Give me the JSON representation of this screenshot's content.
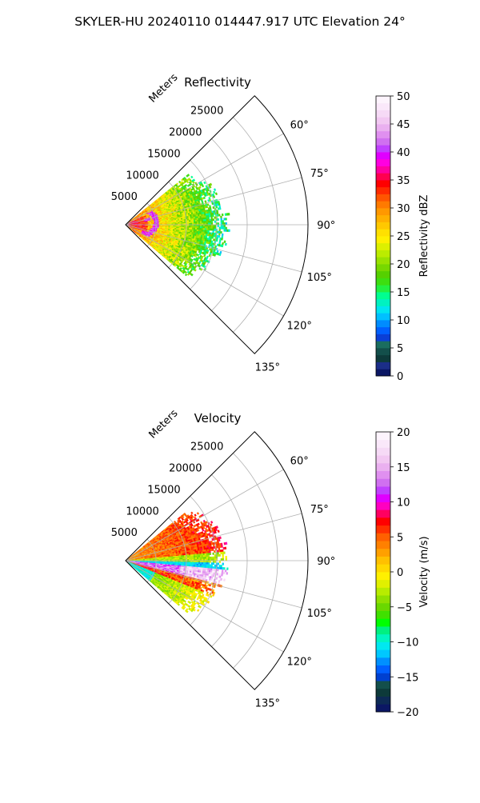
{
  "figure": {
    "suptitle": "SKYLER-HU  20240110  014447.917 UTC Elevation 24°"
  },
  "chart_data": [
    {
      "type": "heatmap",
      "subtype": "radar-ppi-sector",
      "title": "Reflectivity",
      "range_label": "Meters",
      "range_ticks": [
        5000,
        10000,
        15000,
        20000,
        25000
      ],
      "range_limit": [
        0,
        30000
      ],
      "azimuth_limit": [
        45,
        135
      ],
      "azimuth_ticks": [
        "60°",
        "75°",
        "90°",
        "105°",
        "120°",
        "135°"
      ],
      "azimuth_tick_values": [
        60,
        75,
        90,
        105,
        120,
        135
      ],
      "grid": true,
      "colorbar": {
        "label": "Reflectivity dBZ",
        "vmin": 0,
        "vmax": 50,
        "ticks": [
          0,
          5,
          10,
          15,
          20,
          25,
          30,
          35,
          40,
          45,
          50
        ],
        "tick_labels": [
          "0",
          "5",
          "10",
          "15",
          "20",
          "25",
          "30",
          "35",
          "40",
          "45",
          "50"
        ],
        "colors": [
          "#0b1764",
          "#1b2e88",
          "#0d3a3a",
          "#134f4b",
          "#1a6d5f",
          "#0b3fd6",
          "#0060ff",
          "#008cff",
          "#00c0ff",
          "#00e5f0",
          "#00f2c0",
          "#00ff90",
          "#22f040",
          "#3dde10",
          "#55d000",
          "#77d800",
          "#99e200",
          "#bbec00",
          "#ddf000",
          "#fff000",
          "#ffe000",
          "#ffc800",
          "#ffb000",
          "#ff9800",
          "#ff7a00",
          "#ff5500",
          "#ff2a00",
          "#ff0000",
          "#ff0050",
          "#ff00a0",
          "#ff00e0",
          "#e000ff",
          "#c040ff",
          "#d070f0",
          "#e090f0",
          "#eab0f0",
          "#f2c8f2",
          "#f6daf6",
          "#fae8fa",
          "#fdf4fd"
        ]
      },
      "data": {
        "azimuth_range": [
          51,
          129
        ],
        "max_range_m": 16500,
        "field_description_values": {
          "near_range_dbz": [
            26,
            34
          ],
          "mid_range_dbz": [
            18,
            24
          ],
          "far_range_dbz": [
            12,
            17
          ],
          "cores_dbz": [
            38,
            42
          ]
        }
      }
    },
    {
      "type": "heatmap",
      "subtype": "radar-ppi-sector",
      "title": "Velocity",
      "range_label": "Meters",
      "range_ticks": [
        5000,
        10000,
        15000,
        20000,
        25000
      ],
      "range_limit": [
        0,
        30000
      ],
      "azimuth_limit": [
        45,
        135
      ],
      "azimuth_ticks": [
        "60°",
        "75°",
        "90°",
        "105°",
        "120°",
        "135°"
      ],
      "azimuth_tick_values": [
        60,
        75,
        90,
        105,
        120,
        135
      ],
      "grid": true,
      "colorbar": {
        "label": "Velocity (m/s)",
        "vmin": -20,
        "vmax": 20,
        "ticks": [
          -20,
          -15,
          -10,
          -5,
          0,
          5,
          10,
          15,
          20
        ],
        "tick_labels": [
          "−20",
          "−15",
          "−10",
          "−5",
          "0",
          "5",
          "10",
          "15",
          "20"
        ],
        "colors": [
          "#0b1764",
          "#0d2a55",
          "#0d3a3a",
          "#134f4b",
          "#0040d0",
          "#0060ff",
          "#0090ff",
          "#00c8ff",
          "#00e8f0",
          "#00f5c0",
          "#00f080",
          "#00ff00",
          "#40e000",
          "#6ad800",
          "#90e000",
          "#b8ec00",
          "#e0f000",
          "#fff000",
          "#ffd800",
          "#ffc000",
          "#ffa000",
          "#ff8000",
          "#ff6000",
          "#ff3000",
          "#ff0000",
          "#ff0060",
          "#ff00c0",
          "#e000ff",
          "#c040ff",
          "#d070f0",
          "#e090f0",
          "#eab0f0",
          "#f2c8f2",
          "#f6daf6",
          "#fae8fa",
          "#fdf4fd"
        ]
      },
      "data": {
        "azimuth_range": [
          51,
          129
        ],
        "max_range_m": 16500,
        "field_description_values": {
          "north_sector_ms": [
            0,
            6
          ],
          "zero_line_ms": [
            -12,
            -8
          ],
          "south_core_ms": [
            10,
            20
          ],
          "south_far_ms": [
            -8,
            -2
          ]
        }
      }
    }
  ]
}
